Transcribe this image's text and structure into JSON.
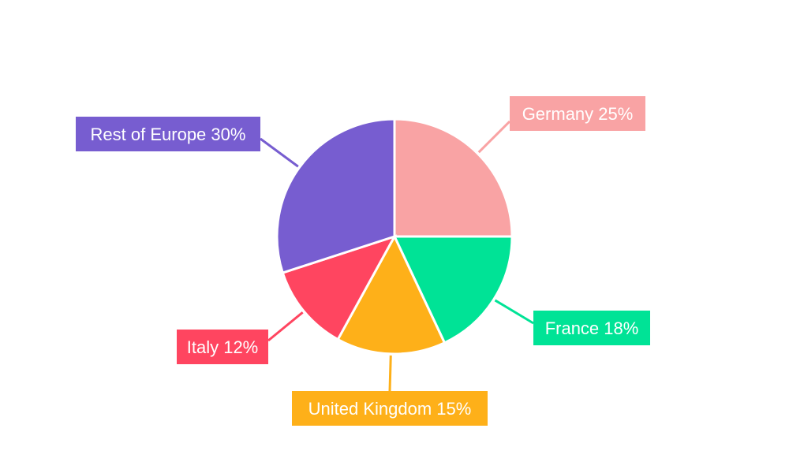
{
  "chart_data": {
    "type": "pie",
    "title": "",
    "start": "top",
    "direction": "clockwise",
    "slices": [
      {
        "label": "Germany",
        "value": 25,
        "text": "Germany 25%",
        "color": "#F9A3A4"
      },
      {
        "label": "France",
        "value": 18,
        "text": "France 18%",
        "color": "#00E396"
      },
      {
        "label": "United Kingdom",
        "value": 15,
        "text": "United Kingdom 15%",
        "color": "#FEB019"
      },
      {
        "label": "Italy",
        "value": 12,
        "text": "Italy 12%",
        "color": "#FF4560"
      },
      {
        "label": "Rest of Europe",
        "value": 30,
        "text": "Rest of Europe 30%",
        "color": "#775DD0"
      }
    ]
  }
}
